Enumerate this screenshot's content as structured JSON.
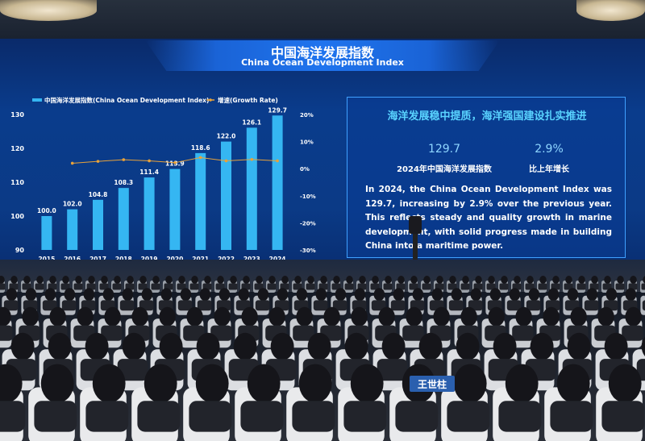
{
  "title": {
    "cn": "中国海洋发展指数",
    "en": "China Ocean Development Index"
  },
  "legend": {
    "index": "中国海洋发展指数(China Ocean Development Index)",
    "growth": "增速(Growth Rate)"
  },
  "chart_data": {
    "type": "bar",
    "categories": [
      "2015",
      "2016",
      "2017",
      "2018",
      "2019",
      "2020",
      "2021",
      "2022",
      "2023",
      "2024"
    ],
    "series": [
      {
        "name": "中国海洋发展指数(China Ocean Development Index)",
        "values": [
          100.0,
          102.0,
          104.8,
          108.3,
          111.4,
          113.9,
          118.6,
          122.0,
          126.1,
          129.7
        ]
      },
      {
        "name": "增速(Growth Rate)",
        "values": [
          null,
          2.0,
          2.7,
          3.3,
          2.9,
          2.2,
          4.1,
          2.9,
          3.4,
          2.9
        ]
      }
    ],
    "value_labels": [
      "100.0",
      "102.0",
      "104.8",
      "108.3",
      "111.4",
      "113.9",
      "118.6",
      "122.0",
      "126.1",
      "129.7"
    ],
    "ylim": [
      90,
      130
    ],
    "yticks": [
      "90",
      "100",
      "110",
      "120",
      "130"
    ],
    "y2lim": [
      -30,
      20
    ],
    "y2ticks": [
      "20%",
      "10%",
      "0%",
      "-10%",
      "-20%",
      "-30%"
    ]
  },
  "info": {
    "headline": "海洋发展稳中提质，海洋强国建设扎实推进",
    "stat1_value": "129.7",
    "stat1_label": "2024年中国海洋发展指数",
    "stat2_value": "2.9%",
    "stat2_label": "比上年增长",
    "body": "In 2024, the China Ocean Development Index was 129.7, increasing by 2.9% over the previous year. This reflects steady and quality growth in marine development, with solid progress made in building China into a maritime power."
  },
  "audience": {
    "nameplate_1": "王世柱"
  },
  "colors": {
    "bar": "#35b6f2",
    "growth_line": "#e8a23a",
    "accent": "#59d3ff"
  }
}
